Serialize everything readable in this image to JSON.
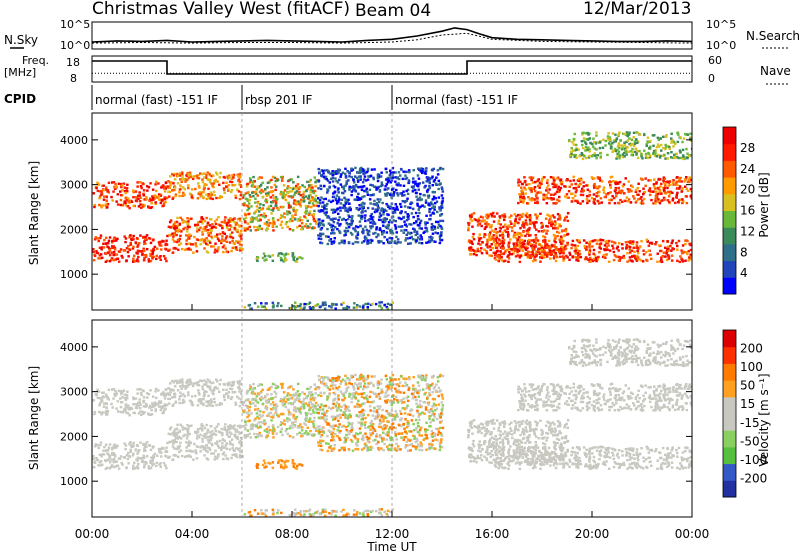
{
  "title": {
    "station": "Christmas Valley West (fitACF)",
    "beam": "Beam 04",
    "date": "12/Mar/2013"
  },
  "left_labels": {
    "nsky": "N.Sky",
    "freq": "Freq.",
    "mhz": "[MHz]",
    "cpid": "CPID"
  },
  "right_labels": {
    "nsearch": "N.Search",
    "nave": "Nave"
  },
  "axes": {
    "ylabel_power": "Slant Range [km]",
    "ylabel_velocity": "Slant Range [km]",
    "xlabel": "Time UT",
    "power_cbar_label": "Power [dB]",
    "velocity_cbar_label": "Velocity [m s⁻¹]"
  },
  "colors": {
    "power_scale": [
      "#0000ff",
      "#2244bb",
      "#2f6f8a",
      "#3a8a5a",
      "#6ab83a",
      "#d8c020",
      "#ff9a00",
      "#ff5a00",
      "#ff1a00",
      "#ee0000"
    ],
    "velocity_scale": [
      "#2230a0",
      "#3358c8",
      "#55c040",
      "#8ad060",
      "#c8c8c0",
      "#c8c8c0",
      "#ffa020",
      "#ff7a00",
      "#ff3000",
      "#dd0000"
    ],
    "bar_background": "#ffffff"
  },
  "chart_data": [
    {
      "type": "line",
      "panel": "noise",
      "ylim_labels": [
        "10^0",
        "10^5"
      ],
      "series": [
        {
          "name": "N.Sky",
          "x_hours": [
            0,
            1,
            2,
            3,
            4,
            5,
            6,
            7,
            8,
            9,
            10,
            11,
            12,
            13,
            14,
            14.5,
            15,
            15.5,
            16,
            17,
            18,
            19,
            20,
            21,
            22,
            23,
            24
          ],
          "log10_values": [
            1.3,
            1.5,
            1.4,
            1.6,
            1.3,
            1.4,
            1.5,
            1.6,
            1.5,
            1.4,
            1.3,
            1.6,
            1.8,
            2.4,
            3.3,
            3.9,
            3.6,
            2.8,
            2.1,
            1.8,
            1.7,
            1.6,
            1.5,
            1.4,
            1.4,
            1.5,
            1.4
          ]
        },
        {
          "name": "N.Search",
          "x_hours": [
            0,
            2,
            4,
            6,
            8,
            10,
            12,
            13,
            14,
            15,
            16,
            18,
            20,
            22,
            24
          ],
          "log10_values": [
            1.1,
            1.2,
            1.1,
            1.2,
            1.2,
            1.1,
            1.3,
            1.7,
            2.6,
            2.9,
            1.8,
            1.4,
            1.3,
            1.2,
            1.1
          ]
        }
      ],
      "right_ylim_labels": [
        "10^0",
        "10^5"
      ]
    },
    {
      "type": "line",
      "panel": "frequency",
      "yticks_left": [
        "18",
        "8"
      ],
      "yticks_right": [
        "60",
        "0"
      ],
      "series": [
        {
          "name": "Freq",
          "x_hours": [
            0,
            3,
            3,
            15,
            15,
            24
          ],
          "values_mhz": [
            17,
            17,
            10.5,
            10.5,
            17,
            17
          ]
        },
        {
          "name": "Nave",
          "x_hours": [
            0,
            24
          ],
          "values": [
            20,
            20
          ]
        }
      ]
    },
    {
      "type": "table",
      "panel": "cpid",
      "segments": [
        {
          "label": "normal (fast) -151 IF",
          "start_hour": 0,
          "end_hour": 6
        },
        {
          "label": "rbsp 201 IF",
          "start_hour": 6,
          "end_hour": 12
        },
        {
          "label": "normal (fast) -151 IF",
          "start_hour": 12,
          "end_hour": 24
        }
      ]
    },
    {
      "type": "heatmap",
      "panel": "power",
      "xlim_hours": [
        0,
        24
      ],
      "ylim_km": [
        200,
        4600
      ],
      "ytick_labels": [
        "1000",
        "2000",
        "3000",
        "4000"
      ],
      "colorbar_ticks": [
        "4",
        "8",
        "12",
        "16",
        "20",
        "24",
        "28"
      ],
      "colorbar_range_db": [
        0,
        32
      ]
    },
    {
      "type": "heatmap",
      "panel": "velocity",
      "xlim_hours": [
        0,
        24
      ],
      "ylim_km": [
        200,
        4600
      ],
      "ytick_labels": [
        "1000",
        "2000",
        "3000",
        "4000"
      ],
      "colorbar_ticks": [
        "200",
        "100",
        "50",
        "15",
        "-15",
        "-50",
        "-100",
        "-200"
      ],
      "colorbar_range": [
        -250,
        250
      ]
    },
    {
      "type": "axis",
      "panel": "time",
      "xtick_labels": [
        "00:00",
        "04:00",
        "08:00",
        "12:00",
        "16:00",
        "20:00",
        "00:00"
      ]
    }
  ]
}
